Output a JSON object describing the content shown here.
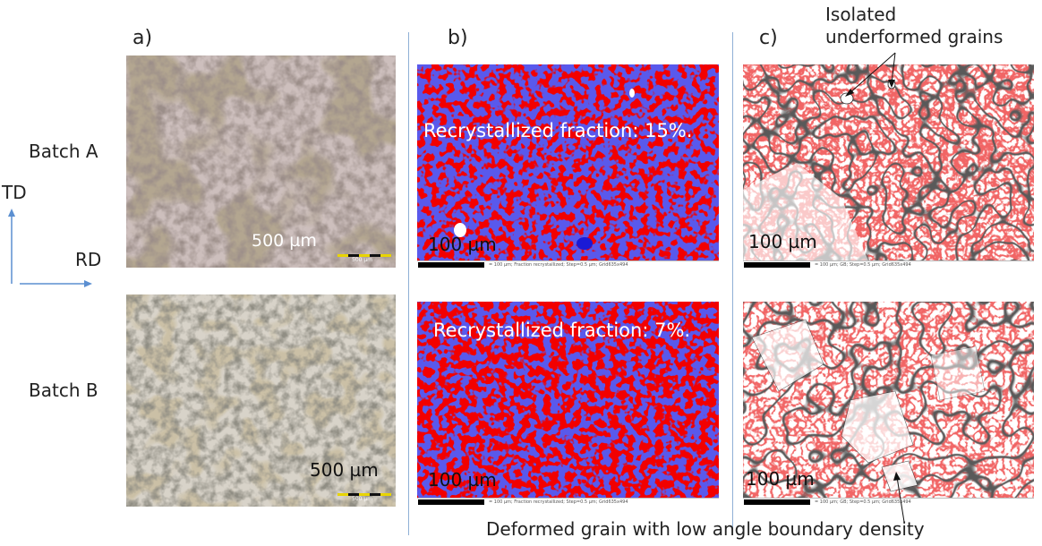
{
  "panels": {
    "a": "a)",
    "b": "b)",
    "c": "c)"
  },
  "rows": {
    "batch_a": "Batch A",
    "batch_b": "Batch B"
  },
  "axes": {
    "td": "TD",
    "rd": "RD"
  },
  "scales": {
    "optical_a": "500 µm",
    "optical_a_bar": "500 µm",
    "optical_b": "500 µm",
    "optical_b_bar": "500 µm",
    "ebsd_ba": "100 µm",
    "ebsd_bb": "100 µm",
    "ebsd_ca": "100 µm",
    "ebsd_cb": "100 µm"
  },
  "overlays": {
    "rex_a": "Recrystallized fraction: 15%.",
    "rex_b": "Recrystallized fraction: 7%."
  },
  "captions": {
    "ba": "= 100 µm; Fraction recrystallized; Step=0.5 µm; Grid635x494",
    "bb": "= 100 µm; Fraction recrystallized; Step=0.5 µm; Grid635x494",
    "ca": "= 100 µm; GB; Step=0.5 µm; Grid635x494",
    "cb": "= 100 µm; GB; Step=0.5 µm; Grid635x494"
  },
  "annotations": {
    "isolated_line1": "Isolated",
    "isolated_line2": "underformed grains",
    "deformed": "Deformed grain with low angle boundary density"
  },
  "colors": {
    "deformed_red": "#f20000",
    "recrystallized_blue": "#1a1ad6",
    "boundary_red": "#e02020",
    "divider": "#8fb0d6",
    "axis_arrow": "#5b8fd1"
  }
}
